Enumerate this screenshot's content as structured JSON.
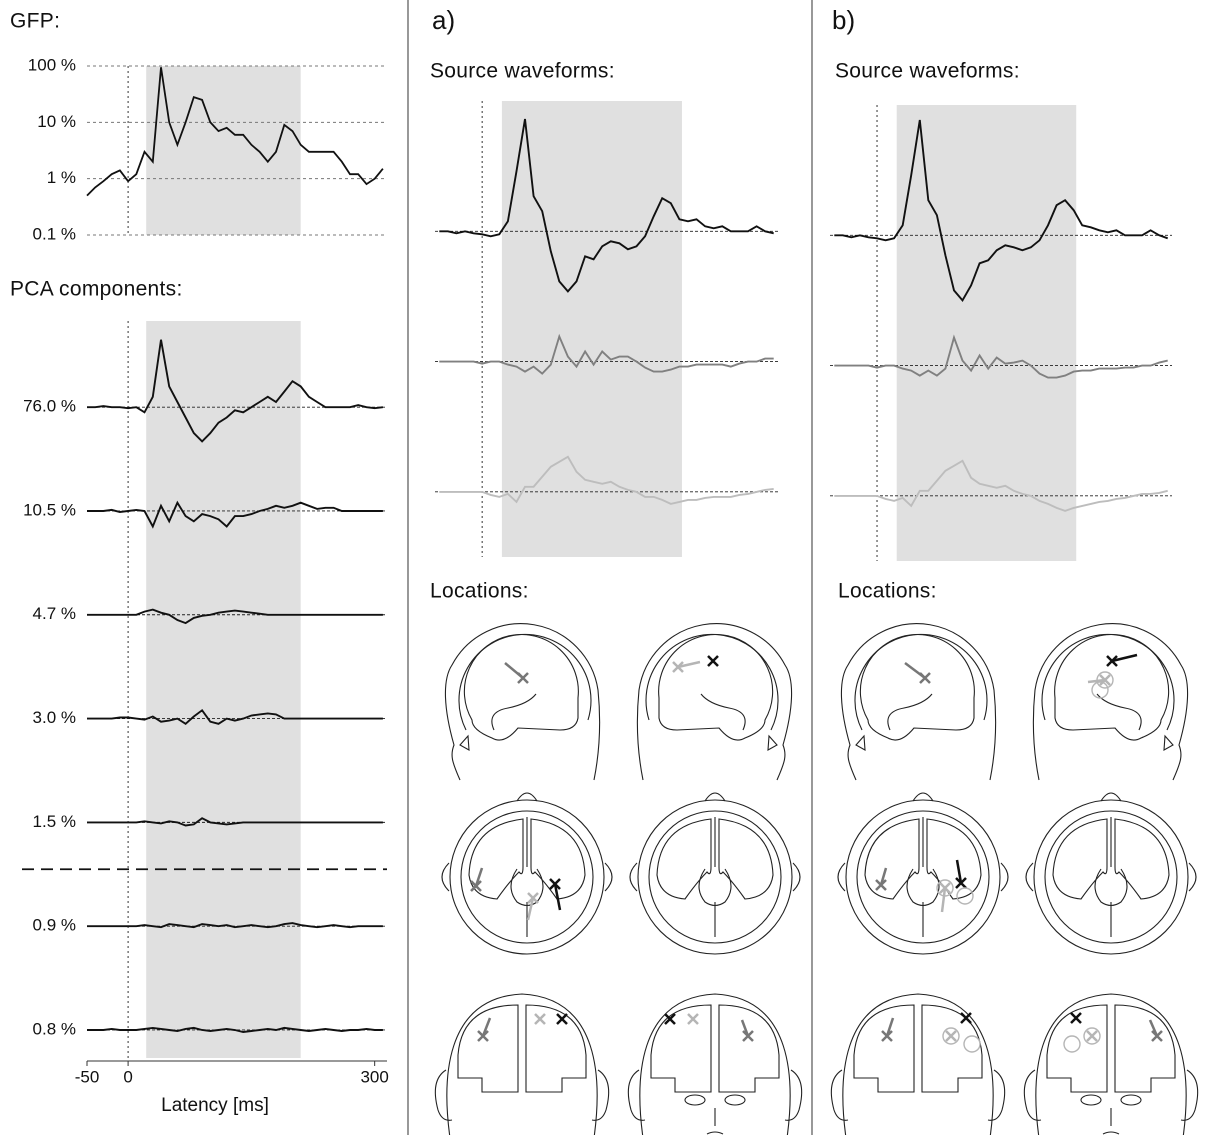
{
  "panels": {
    "a": {
      "label": "a)",
      "locations": "Locations:"
    },
    "b": {
      "label": "b)",
      "locations": "Locations:"
    }
  },
  "chart_data": [
    {
      "type": "line",
      "title": "GFP:",
      "log_y": true,
      "grid": true,
      "x": [
        -50,
        -40,
        -30,
        -20,
        -10,
        0,
        10,
        20,
        30,
        40,
        50,
        60,
        70,
        80,
        90,
        100,
        110,
        120,
        130,
        140,
        150,
        160,
        170,
        180,
        190,
        200,
        210,
        220,
        230,
        240,
        250,
        260,
        270,
        280,
        290,
        300,
        310
      ],
      "xlim": [
        -50,
        315
      ],
      "window": [
        22,
        210
      ],
      "ylim": [
        0.1,
        100
      ],
      "yticks": [
        {
          "value": 0.1,
          "label": "0.1 %"
        },
        {
          "value": 1,
          "label": "1 %"
        },
        {
          "value": 10,
          "label": "10 %"
        },
        {
          "value": 100,
          "label": "100 %"
        }
      ],
      "series": [
        {
          "color": "#111111",
          "values": [
            0.5,
            0.7,
            0.9,
            1.2,
            1.4,
            0.9,
            1.2,
            3,
            2,
            95,
            10,
            4,
            10,
            28,
            25,
            10,
            7,
            8,
            6,
            6,
            4,
            3,
            2,
            3,
            9,
            7,
            4,
            3,
            3,
            3,
            3,
            2,
            1.2,
            1.2,
            0.8,
            1,
            1.5
          ]
        }
      ]
    },
    {
      "type": "traces",
      "title": "PCA components:",
      "x_label": "Latency [ms]",
      "x": [
        -50,
        -40,
        -30,
        -20,
        -10,
        0,
        10,
        20,
        30,
        40,
        50,
        60,
        70,
        80,
        90,
        100,
        110,
        120,
        130,
        140,
        150,
        160,
        170,
        180,
        190,
        200,
        210,
        220,
        230,
        240,
        250,
        260,
        270,
        280,
        290,
        300,
        310
      ],
      "xlim": [
        -50,
        315
      ],
      "xticks": [
        -50,
        0,
        300
      ],
      "window": [
        22,
        210
      ],
      "ylim": [
        -50,
        50
      ],
      "series": [
        {
          "name": "76.0 %",
          "color": "#111111",
          "values": [
            0,
            0,
            1,
            0,
            0,
            -1,
            0,
            -5,
            10,
            65,
            20,
            5,
            -10,
            -25,
            -33,
            -25,
            -15,
            -10,
            -3,
            -5,
            0,
            5,
            10,
            5,
            15,
            25,
            20,
            10,
            5,
            0,
            0,
            0,
            0,
            2,
            0,
            -1,
            0
          ]
        },
        {
          "name": "10.5 %",
          "color": "#111111",
          "values": [
            0,
            0,
            0,
            1,
            -1,
            0,
            1,
            0,
            -15,
            5,
            -10,
            8,
            -5,
            -10,
            -3,
            -5,
            -8,
            -15,
            -5,
            -5,
            -3,
            0,
            2,
            5,
            3,
            5,
            8,
            5,
            2,
            3,
            3,
            0,
            0,
            0,
            0,
            0,
            0
          ]
        },
        {
          "name": "4.7 %",
          "color": "#111111",
          "values": [
            0,
            0,
            0,
            0,
            0,
            0,
            0,
            3,
            5,
            2,
            0,
            -5,
            -8,
            -3,
            -1,
            0,
            2,
            3,
            4,
            3,
            2,
            1,
            0,
            0,
            0,
            0,
            0,
            0,
            0,
            0,
            0,
            0,
            0,
            0,
            0,
            0,
            0
          ]
        },
        {
          "name": "3.0 %",
          "color": "#111111",
          "values": [
            0,
            0,
            0,
            0,
            1,
            1,
            0,
            -1,
            2,
            -3,
            -2,
            0,
            -5,
            2,
            8,
            -3,
            -5,
            0,
            -2,
            0,
            3,
            4,
            5,
            4,
            0,
            0,
            0,
            0,
            0,
            0,
            0,
            0,
            0,
            0,
            0,
            0,
            0
          ]
        },
        {
          "name": "1.5 %",
          "color": "#111111",
          "values": [
            0,
            0,
            0,
            0,
            0,
            0,
            0,
            1,
            0,
            -1,
            1,
            0,
            -3,
            -2,
            4,
            0,
            -1,
            -2,
            -1,
            0,
            0,
            0,
            0,
            0,
            0,
            0,
            0,
            0,
            0,
            0,
            0,
            0,
            0,
            0,
            0,
            0,
            0
          ]
        },
        {
          "name": "0.9 %",
          "color": "#111111",
          "values": [
            0,
            0,
            0,
            0,
            0,
            0,
            0,
            1,
            0,
            -1,
            2,
            1,
            0,
            -1,
            2,
            1,
            0,
            1,
            -1,
            0,
            1,
            0,
            -1,
            0,
            2,
            3,
            1,
            0,
            -1,
            0,
            1,
            0,
            -1,
            0,
            0,
            0,
            0
          ]
        },
        {
          "name": "0.8 %",
          "color": "#111111",
          "values": [
            0,
            0,
            0,
            1,
            0,
            0,
            0,
            1,
            2,
            1,
            0,
            -1,
            1,
            2,
            0,
            -1,
            0,
            1,
            0,
            -2,
            -1,
            0,
            1,
            0,
            2,
            1,
            0,
            -1,
            0,
            1,
            0,
            -1,
            0,
            0,
            1,
            0,
            0
          ]
        }
      ]
    },
    {
      "type": "traces",
      "title": "Source waveforms:",
      "x": [
        -50,
        -40,
        -30,
        -20,
        -10,
        0,
        10,
        20,
        30,
        40,
        50,
        60,
        70,
        80,
        90,
        100,
        110,
        120,
        130,
        140,
        150,
        160,
        170,
        180,
        190,
        200,
        210,
        220,
        230,
        240,
        250,
        260,
        270,
        280,
        290,
        300,
        310,
        320,
        330,
        340
      ],
      "xlim": [
        -55,
        345
      ],
      "window": [
        23,
        233
      ],
      "ylim": [
        -65,
        65
      ],
      "series": [
        {
          "color": "#111111",
          "values": [
            0,
            0,
            -2,
            0,
            -2,
            -3,
            -5,
            -3,
            10,
            60,
            112,
            35,
            20,
            -20,
            -50,
            -60,
            -50,
            -25,
            -28,
            -15,
            -10,
            -12,
            -18,
            -15,
            -5,
            15,
            33,
            28,
            12,
            10,
            12,
            5,
            3,
            5,
            0,
            0,
            0,
            5,
            0,
            -2
          ]
        },
        {
          "color": "#808080",
          "values": [
            0,
            0,
            0,
            0,
            0,
            -2,
            0,
            0,
            -3,
            -5,
            -10,
            -5,
            -12,
            -3,
            25,
            5,
            -5,
            10,
            -3,
            10,
            2,
            5,
            5,
            0,
            -6,
            -10,
            -10,
            -8,
            -5,
            -5,
            -3,
            -3,
            -3,
            -3,
            -5,
            -2,
            0,
            0,
            3,
            3
          ]
        },
        {
          "color": "#bdbdbd",
          "values": [
            0,
            0,
            0,
            0,
            0,
            0,
            -3,
            -5,
            -2,
            -10,
            5,
            5,
            15,
            25,
            30,
            35,
            20,
            12,
            10,
            8,
            10,
            5,
            2,
            0,
            -5,
            -5,
            -8,
            -12,
            -10,
            -8,
            -8,
            -6,
            -5,
            -5,
            -5,
            -3,
            -2,
            0,
            2,
            3
          ]
        }
      ]
    },
    {
      "type": "traces",
      "title": "Source waveforms:",
      "x": [
        -50,
        -40,
        -30,
        -20,
        -10,
        0,
        10,
        20,
        30,
        40,
        50,
        60,
        70,
        80,
        90,
        100,
        110,
        120,
        130,
        140,
        150,
        160,
        170,
        180,
        190,
        200,
        210,
        220,
        230,
        240,
        250,
        260,
        270,
        280,
        290,
        300,
        310,
        320,
        330,
        340
      ],
      "xlim": [
        -55,
        345
      ],
      "window": [
        23,
        233
      ],
      "ylim": [
        -65,
        65
      ],
      "series": [
        {
          "color": "#111111",
          "values": [
            0,
            0,
            -2,
            0,
            -2,
            -3,
            -5,
            -3,
            10,
            60,
            115,
            35,
            20,
            -20,
            -55,
            -65,
            -50,
            -28,
            -25,
            -15,
            -10,
            -12,
            -15,
            -12,
            -5,
            10,
            30,
            35,
            25,
            10,
            8,
            5,
            3,
            5,
            0,
            0,
            0,
            5,
            0,
            -3
          ]
        },
        {
          "color": "#808080",
          "values": [
            0,
            0,
            0,
            0,
            0,
            -2,
            0,
            0,
            -3,
            -5,
            -10,
            -5,
            -10,
            -3,
            28,
            5,
            -5,
            10,
            -3,
            8,
            2,
            3,
            5,
            0,
            -8,
            -12,
            -12,
            -10,
            -6,
            -5,
            -5,
            -3,
            -3,
            -3,
            -2,
            -2,
            0,
            0,
            3,
            5
          ]
        },
        {
          "color": "#bdbdbd",
          "values": [
            0,
            0,
            0,
            0,
            0,
            0,
            -3,
            -5,
            -2,
            -10,
            5,
            5,
            15,
            25,
            30,
            35,
            18,
            12,
            10,
            8,
            10,
            5,
            2,
            0,
            -5,
            -8,
            -12,
            -15,
            -12,
            -10,
            -8,
            -6,
            -5,
            -3,
            -2,
            0,
            2,
            2,
            3,
            5
          ]
        }
      ]
    }
  ]
}
